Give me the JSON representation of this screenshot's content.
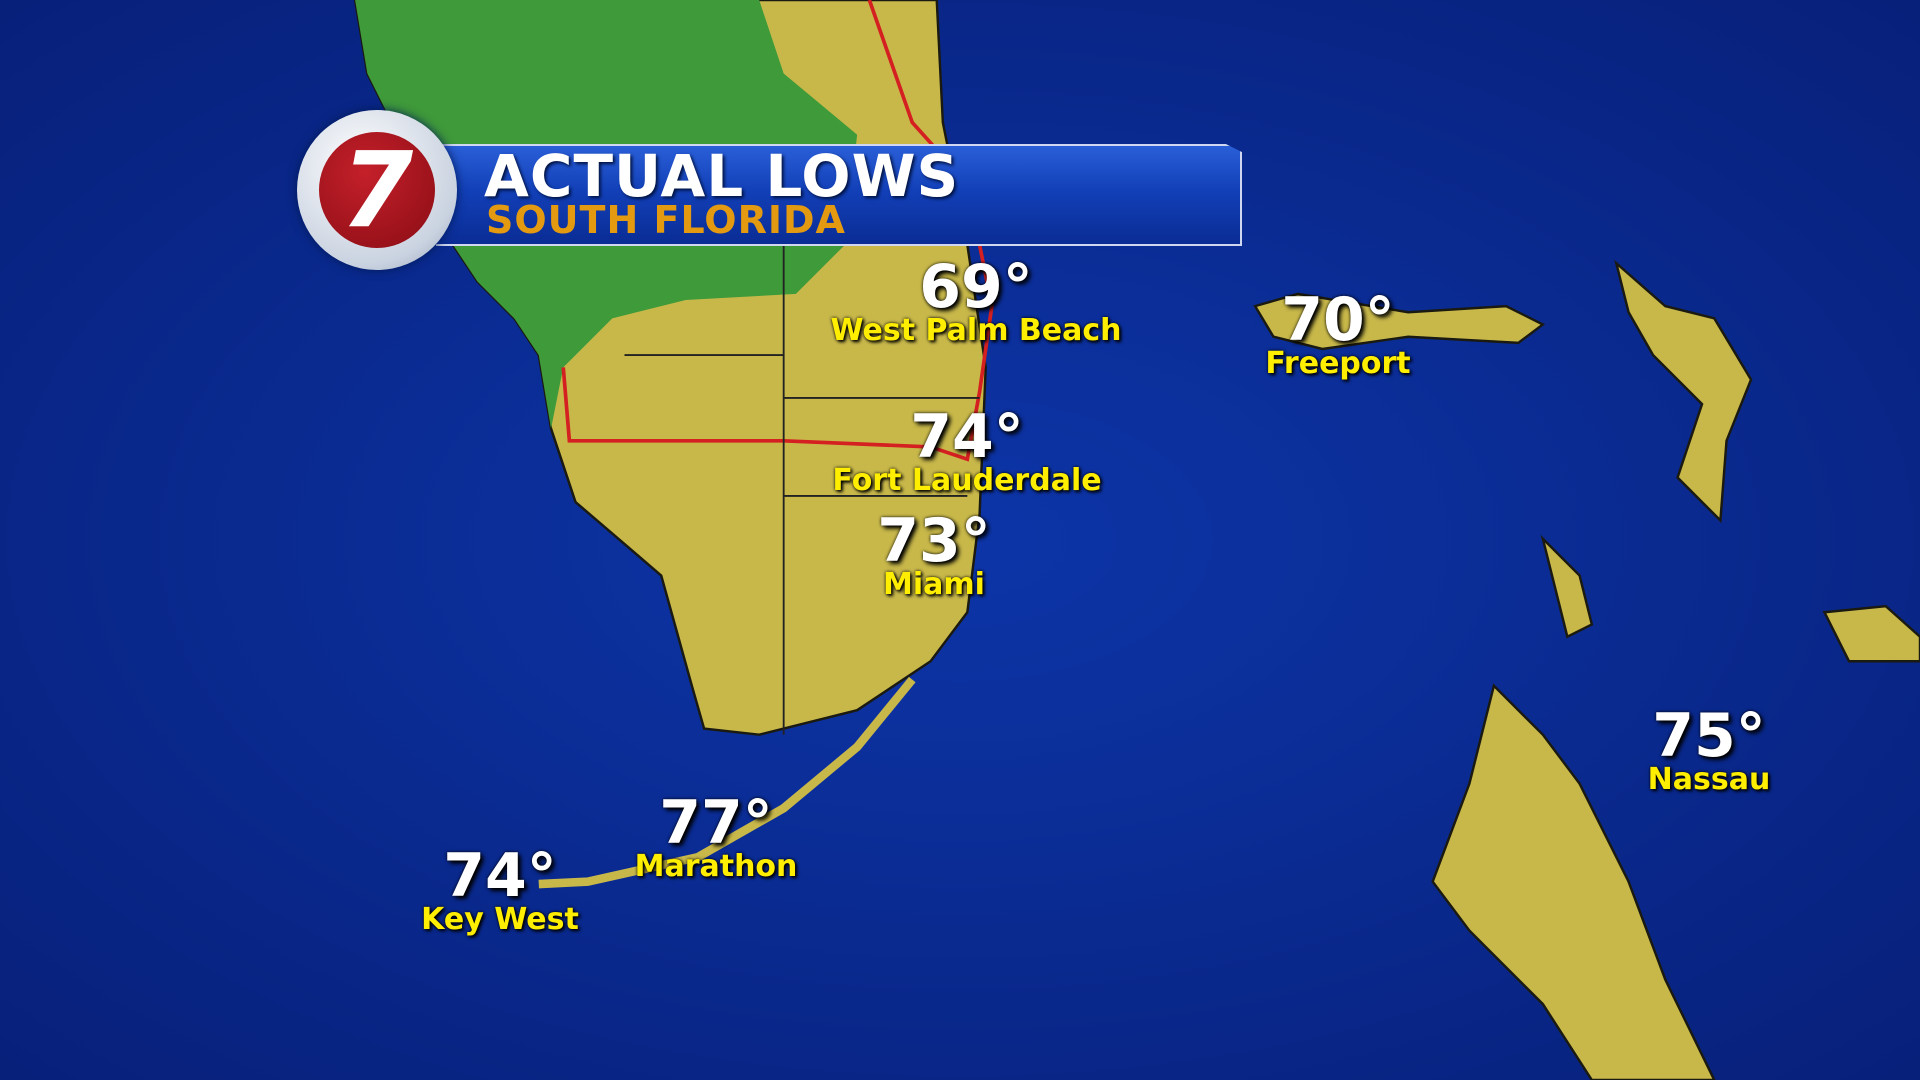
{
  "header": {
    "title": "ACTUAL LOWS",
    "subtitle": "SOUTH FLORIDA",
    "logo": "7"
  },
  "colors": {
    "water": "#0a2a8c",
    "land_warm": "#c8b84a",
    "land_cool": "#3f9a3a",
    "banner": "#1240b8",
    "title": "#ffffff",
    "subtitle": "#e39a10",
    "city_label": "#ffee00",
    "county_line": "#d42020"
  },
  "locations": [
    {
      "city": "West Palm Beach",
      "temp": "69°"
    },
    {
      "city": "Freeport",
      "temp": "70°"
    },
    {
      "city": "Fort Lauderdale",
      "temp": "74°"
    },
    {
      "city": "Miami",
      "temp": "73°"
    },
    {
      "city": "Marathon",
      "temp": "77°"
    },
    {
      "city": "Key West",
      "temp": "74°"
    },
    {
      "city": "Nassau",
      "temp": "75°"
    }
  ]
}
